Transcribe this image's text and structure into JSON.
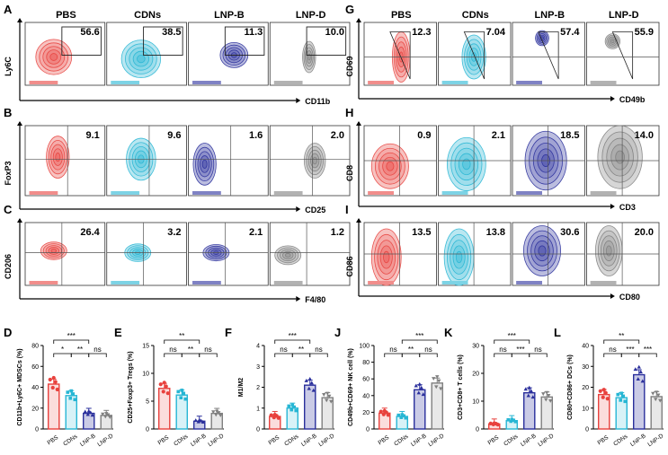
{
  "colors": {
    "PBS": "#e8413d",
    "CDNs": "#27b6d4",
    "LNP-B": "#2a2f9c",
    "LNP-D": "#7f7f7f"
  },
  "groups": [
    "PBS",
    "CDNs",
    "LNP-B",
    "LNP-D"
  ],
  "flow_rows": [
    {
      "panel": "A",
      "ylabel": "Ly6C",
      "xlabel": "CD11b",
      "values": [
        "56.6",
        "38.5",
        "11.3",
        "10.0"
      ],
      "showGroups": true
    },
    {
      "panel": "B",
      "ylabel": "FoxP3",
      "xlabel": "CD25",
      "values": [
        "9.1",
        "9.6",
        "1.6",
        "2.0"
      ],
      "showGroups": false
    },
    {
      "panel": "C",
      "ylabel": "CD206",
      "xlabel": "F4/80",
      "values": [
        "26.4",
        "3.2",
        "2.1",
        "1.2"
      ],
      "showGroups": false
    },
    {
      "panel": "G",
      "ylabel": "CD69",
      "xlabel": "CD49b",
      "values": [
        "12.3",
        "7.04",
        "57.4",
        "55.9"
      ],
      "showGroups": true
    },
    {
      "panel": "H",
      "ylabel": "CD8",
      "xlabel": "CD3",
      "values": [
        "0.9",
        "2.1",
        "18.5",
        "14.0"
      ],
      "showGroups": false
    },
    {
      "panel": "I",
      "ylabel": "CD86",
      "xlabel": "CD80",
      "values": [
        "13.5",
        "13.8",
        "30.6",
        "20.0"
      ],
      "showGroups": false
    }
  ],
  "chart_data": [
    {
      "panel": "D",
      "type": "bar",
      "ylabel": "CD11b+Ly6C+ MDSCs (%)",
      "categories": [
        "PBS",
        "CDNs",
        "LNP-B",
        "LNP-D"
      ],
      "values": [
        43,
        32,
        15,
        13
      ],
      "ylim": [
        0,
        80
      ],
      "ticks": [
        "0",
        "20",
        "40",
        "60",
        "80"
      ],
      "brackets": [
        {
          "from": 0,
          "to": 2,
          "label": "***"
        },
        {
          "from": 0,
          "to": 1,
          "label": "*"
        },
        {
          "from": 1,
          "to": 2,
          "label": "**"
        },
        {
          "from": 2,
          "to": 3,
          "label": "ns"
        }
      ]
    },
    {
      "panel": "E",
      "type": "bar",
      "ylabel": "CD25+Foxp3+ Tregs (%)",
      "categories": [
        "PBS",
        "CDNs",
        "LNP-B",
        "LNP-D"
      ],
      "values": [
        7.3,
        6.1,
        1.4,
        2.8
      ],
      "ylim": [
        0,
        15
      ],
      "ticks": [
        "0",
        "5",
        "10",
        "15"
      ],
      "brackets": [
        {
          "from": 0,
          "to": 2,
          "label": "**"
        },
        {
          "from": 0,
          "to": 1,
          "label": "ns"
        },
        {
          "from": 1,
          "to": 2,
          "label": "**"
        },
        {
          "from": 2,
          "to": 3,
          "label": "ns"
        }
      ]
    },
    {
      "panel": "F",
      "type": "bar",
      "ylabel": "M1/M2",
      "categories": [
        "PBS",
        "CDNs",
        "LNP-B",
        "LNP-D"
      ],
      "values": [
        0.6,
        1.0,
        2.1,
        1.5
      ],
      "ylim": [
        0,
        4
      ],
      "ticks": [
        "0",
        "1",
        "2",
        "3",
        "4"
      ],
      "brackets": [
        {
          "from": 0,
          "to": 2,
          "label": "***"
        },
        {
          "from": 0,
          "to": 1,
          "label": "ns"
        },
        {
          "from": 1,
          "to": 2,
          "label": "**"
        },
        {
          "from": 2,
          "to": 3,
          "label": "ns"
        }
      ]
    },
    {
      "panel": "J",
      "type": "bar",
      "ylabel": "CD49b+CD69+ NK cell (%)",
      "categories": [
        "PBS",
        "CDNs",
        "LNP-B",
        "LNP-D"
      ],
      "values": [
        19,
        15,
        47,
        55
      ],
      "ylim": [
        0,
        100
      ],
      "ticks": [
        "0",
        "20",
        "40",
        "60",
        "80",
        "100"
      ],
      "brackets": [
        {
          "from": 1,
          "to": 3,
          "label": "***"
        },
        {
          "from": 0,
          "to": 1,
          "label": "ns"
        },
        {
          "from": 1,
          "to": 2,
          "label": "**"
        },
        {
          "from": 2,
          "to": 3,
          "label": "ns"
        }
      ]
    },
    {
      "panel": "K",
      "type": "bar",
      "ylabel": "CD3+CD8+ T cells (%)",
      "categories": [
        "PBS",
        "CDNs",
        "LNP-B",
        "LNP-D"
      ],
      "values": [
        1.8,
        3,
        13,
        11.5
      ],
      "ylim": [
        0,
        30
      ],
      "ticks": [
        "0",
        "10",
        "20",
        "30"
      ],
      "brackets": [
        {
          "from": 0,
          "to": 2,
          "label": "***"
        },
        {
          "from": 0,
          "to": 1,
          "label": "ns"
        },
        {
          "from": 1,
          "to": 2,
          "label": "***"
        },
        {
          "from": 2,
          "to": 3,
          "label": "ns"
        }
      ]
    },
    {
      "panel": "L",
      "type": "bar",
      "ylabel": "CD80+CD86+ DCs (%)",
      "categories": [
        "PBS",
        "CDNs",
        "LNP-B",
        "LNP-D"
      ],
      "values": [
        16.5,
        15,
        26,
        15.5
      ],
      "ylim": [
        0,
        40
      ],
      "ticks": [
        "0",
        "10",
        "20",
        "30",
        "40"
      ],
      "brackets": [
        {
          "from": 0,
          "to": 2,
          "label": "**"
        },
        {
          "from": 0,
          "to": 1,
          "label": "ns"
        },
        {
          "from": 1,
          "to": 2,
          "label": "***"
        },
        {
          "from": 2,
          "to": 3,
          "label": "***"
        }
      ]
    }
  ]
}
